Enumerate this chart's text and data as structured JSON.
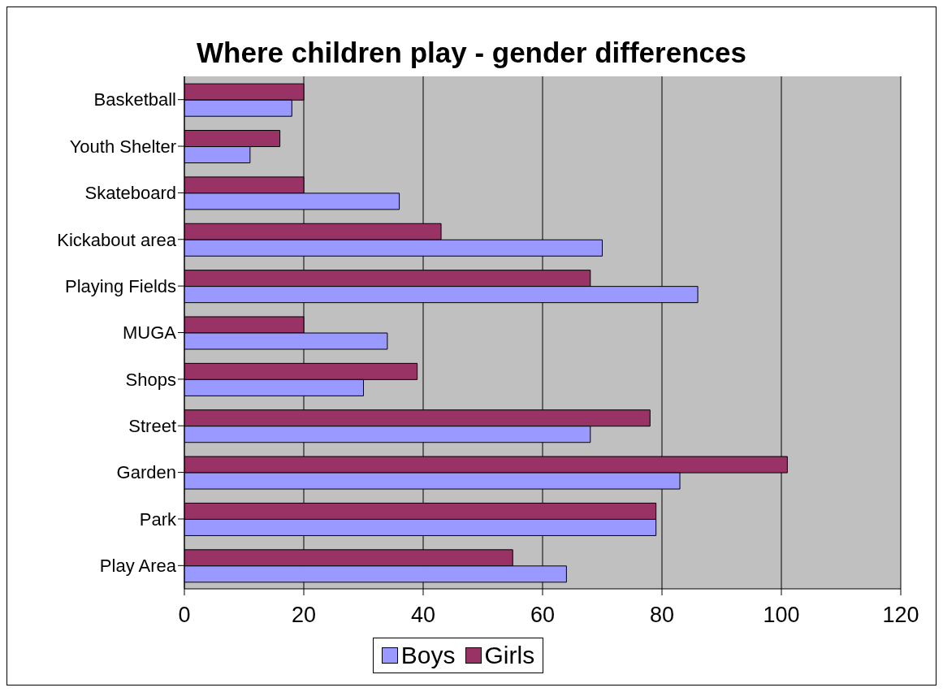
{
  "chart_data": {
    "type": "bar",
    "orientation": "horizontal",
    "title": "Where children play - gender differences",
    "categories": [
      "Basketball",
      "Youth Shelter",
      "Skateboard",
      "Kickabout area",
      "Playing Fields",
      "MUGA",
      "Shops",
      "Street",
      "Garden",
      "Park",
      "Play Area"
    ],
    "series": [
      {
        "name": "Boys",
        "color": "#9999ff",
        "values": [
          18,
          11,
          36,
          70,
          86,
          34,
          30,
          68,
          83,
          79,
          64
        ]
      },
      {
        "name": "Girls",
        "color": "#993366",
        "values": [
          20,
          16,
          20,
          43,
          68,
          20,
          39,
          78,
          101,
          79,
          55
        ]
      }
    ],
    "xlim": [
      0,
      120
    ],
    "xticks": [
      0,
      20,
      40,
      60,
      80,
      100,
      120
    ],
    "grid": "x",
    "legend": "bottom"
  }
}
